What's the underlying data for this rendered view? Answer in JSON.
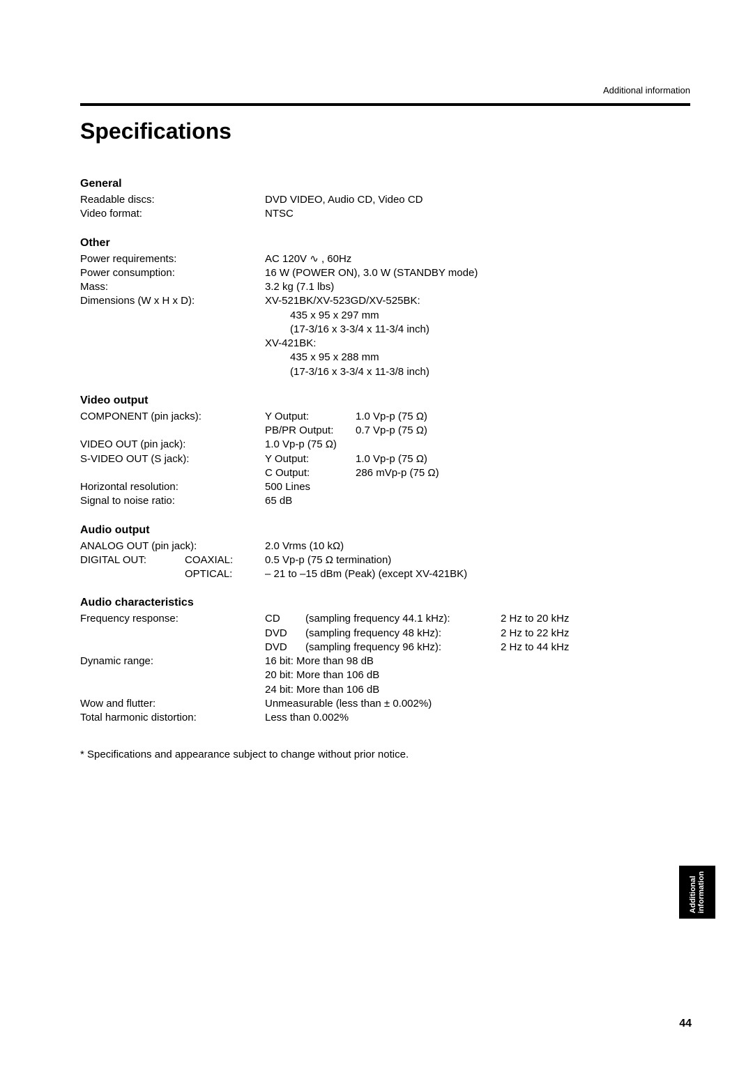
{
  "header": {
    "section": "Additional information"
  },
  "title": "Specifications",
  "sections": {
    "general": {
      "heading": "General",
      "readable_discs": {
        "label": "Readable discs:",
        "value": "DVD VIDEO, Audio CD, Video CD"
      },
      "video_format": {
        "label": "Video format:",
        "value": "NTSC"
      }
    },
    "other": {
      "heading": "Other",
      "power_requirements": {
        "label": "Power requirements:",
        "value": "AC 120V ∿ , 60Hz"
      },
      "power_consumption": {
        "label": "Power consumption:",
        "value": "16 W (POWER ON), 3.0 W (STANDBY mode)"
      },
      "mass": {
        "label": "Mass:",
        "value": "3.2 kg (7.1 lbs)"
      },
      "dimensions": {
        "label": "Dimensions (W x H x D):",
        "line1": "XV-521BK/XV-523GD/XV-525BK:",
        "line2": "435 x 95 x 297 mm",
        "line3": "(17-3/16 x 3-3/4 x 11-3/4 inch)",
        "line4": "XV-421BK:",
        "line5": "435 x 95 x 288 mm",
        "line6": "(17-3/16 x 3-3/4 x 11-3/8 inch)"
      }
    },
    "video_output": {
      "heading": "Video output",
      "component": {
        "label": "COMPONENT (pin jacks):",
        "y": {
          "k": "Y Output:",
          "v": "1.0 Vp-p (75 Ω)"
        },
        "pb": {
          "k": "PB/PR Output:",
          "v": "0.7 Vp-p (75 Ω)"
        }
      },
      "video_out": {
        "label": "VIDEO OUT (pin jack):",
        "value": "1.0 Vp-p (75 Ω)"
      },
      "svideo": {
        "label": "S-VIDEO OUT (S jack):",
        "y": {
          "k": "Y Output:",
          "v": "1.0 Vp-p (75 Ω)"
        },
        "c": {
          "k": "C Output:",
          "v": "286 mVp-p (75 Ω)"
        }
      },
      "horizontal_resolution": {
        "label": "Horizontal resolution:",
        "value": "500 Lines"
      },
      "signal_to_noise": {
        "label": "Signal to noise ratio:",
        "value": "65 dB"
      }
    },
    "audio_output": {
      "heading": "Audio output",
      "analog_out": {
        "label": "ANALOG OUT (pin jack):",
        "value": "2.0 Vrms (10 kΩ)"
      },
      "digital_out": {
        "label": "DIGITAL OUT:",
        "coaxial": {
          "k": "COAXIAL:",
          "v": "0.5 Vp-p (75 Ω termination)"
        },
        "optical": {
          "k": "OPTICAL:",
          "v": "– 21 to –15 dBm (Peak) (except XV-421BK)"
        }
      }
    },
    "audio_characteristics": {
      "heading": "Audio characteristics",
      "frequency_response": {
        "label": "Frequency response:",
        "cd": {
          "a": "CD",
          "b": "(sampling frequency 44.1 kHz):",
          "c": "2 Hz to 20 kHz"
        },
        "dvd1": {
          "a": "DVD",
          "b": "(sampling frequency 48 kHz):",
          "c": "2 Hz to 22 kHz"
        },
        "dvd2": {
          "a": "DVD",
          "b": "(sampling frequency 96 kHz):",
          "c": "2 Hz to 44 kHz"
        }
      },
      "dynamic_range": {
        "label": "Dynamic range:",
        "l1": "16 bit: More than 98 dB",
        "l2": "20 bit: More than 106 dB",
        "l3": "24 bit: More than 106 dB"
      },
      "wow_flutter": {
        "label": "Wow and flutter:",
        "value": "Unmeasurable (less than ± 0.002%)"
      },
      "thd": {
        "label": "Total harmonic distortion:",
        "value": "Less than 0.002%"
      }
    }
  },
  "footnote": "* Specifications and appearance subject to change without prior notice.",
  "side_tab": {
    "line1": "Additional",
    "line2": "information"
  },
  "page_number": "44"
}
